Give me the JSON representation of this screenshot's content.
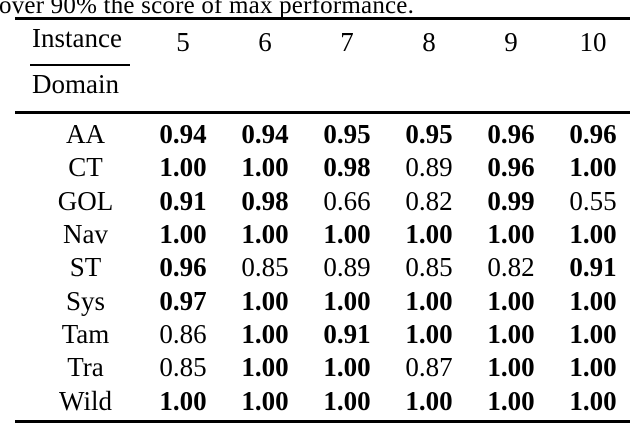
{
  "page": {
    "caption_fragment": "over 90% the score of max performance."
  },
  "table": {
    "stub": {
      "top_label": "Instance",
      "bottom_label": "Domain"
    },
    "columns": [
      "5",
      "6",
      "7",
      "8",
      "9",
      "10"
    ],
    "rows": [
      {
        "domain": "AA",
        "cells": [
          {
            "text": "0.94",
            "bold": true
          },
          {
            "text": "0.94",
            "bold": true
          },
          {
            "text": "0.95",
            "bold": true
          },
          {
            "text": "0.95",
            "bold": true
          },
          {
            "text": "0.96",
            "bold": true
          },
          {
            "text": "0.96",
            "bold": true
          }
        ]
      },
      {
        "domain": "CT",
        "cells": [
          {
            "text": "1.00",
            "bold": true
          },
          {
            "text": "1.00",
            "bold": true
          },
          {
            "text": "0.98",
            "bold": true
          },
          {
            "text": "0.89",
            "bold": false
          },
          {
            "text": "0.96",
            "bold": true
          },
          {
            "text": "1.00",
            "bold": true
          }
        ]
      },
      {
        "domain": "GOL",
        "cells": [
          {
            "text": "0.91",
            "bold": true
          },
          {
            "text": "0.98",
            "bold": true
          },
          {
            "text": "0.66",
            "bold": false
          },
          {
            "text": "0.82",
            "bold": false
          },
          {
            "text": "0.99",
            "bold": true
          },
          {
            "text": "0.55",
            "bold": false
          }
        ]
      },
      {
        "domain": "Nav",
        "cells": [
          {
            "text": "1.00",
            "bold": true
          },
          {
            "text": "1.00",
            "bold": true
          },
          {
            "text": "1.00",
            "bold": true
          },
          {
            "text": "1.00",
            "bold": true
          },
          {
            "text": "1.00",
            "bold": true
          },
          {
            "text": "1.00",
            "bold": true
          }
        ]
      },
      {
        "domain": "ST",
        "cells": [
          {
            "text": "0.96",
            "bold": true
          },
          {
            "text": "0.85",
            "bold": false
          },
          {
            "text": "0.89",
            "bold": false
          },
          {
            "text": "0.85",
            "bold": false
          },
          {
            "text": "0.82",
            "bold": false
          },
          {
            "text": "0.91",
            "bold": true
          }
        ]
      },
      {
        "domain": "Sys",
        "cells": [
          {
            "text": "0.97",
            "bold": true
          },
          {
            "text": "1.00",
            "bold": true
          },
          {
            "text": "1.00",
            "bold": true
          },
          {
            "text": "1.00",
            "bold": true
          },
          {
            "text": "1.00",
            "bold": true
          },
          {
            "text": "1.00",
            "bold": true
          }
        ]
      },
      {
        "domain": "Tam",
        "cells": [
          {
            "text": "0.86",
            "bold": false
          },
          {
            "text": "1.00",
            "bold": true
          },
          {
            "text": "0.91",
            "bold": true
          },
          {
            "text": "1.00",
            "bold": true
          },
          {
            "text": "1.00",
            "bold": true
          },
          {
            "text": "1.00",
            "bold": true
          }
        ]
      },
      {
        "domain": "Tra",
        "cells": [
          {
            "text": "0.85",
            "bold": false
          },
          {
            "text": "1.00",
            "bold": true
          },
          {
            "text": "1.00",
            "bold": true
          },
          {
            "text": "0.87",
            "bold": false
          },
          {
            "text": "1.00",
            "bold": true
          },
          {
            "text": "1.00",
            "bold": true
          }
        ]
      },
      {
        "domain": "Wild",
        "cells": [
          {
            "text": "1.00",
            "bold": true
          },
          {
            "text": "1.00",
            "bold": true
          },
          {
            "text": "1.00",
            "bold": true
          },
          {
            "text": "1.00",
            "bold": true
          },
          {
            "text": "1.00",
            "bold": true
          },
          {
            "text": "1.00",
            "bold": true
          }
        ]
      }
    ]
  }
}
